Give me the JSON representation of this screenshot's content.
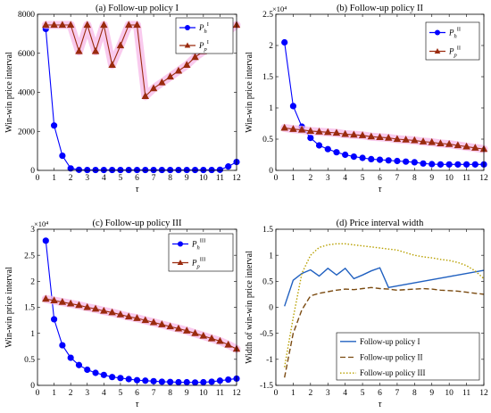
{
  "chart_data": [
    {
      "type": "line",
      "title": "(a) Follow-up policy I",
      "xlabel": "τ",
      "ylabel": "Win-win price interval",
      "xlim": [
        0,
        12
      ],
      "ylim": [
        0,
        8000
      ],
      "xticks": [
        0,
        1,
        2,
        3,
        4,
        5,
        6,
        7,
        8,
        9,
        10,
        11,
        12
      ],
      "yticks": [
        0,
        2000,
        4000,
        6000,
        8000
      ],
      "ytick_labels": [
        "0",
        "2000",
        "4000",
        "6000",
        "8000"
      ],
      "exponent_label": "",
      "grid": false,
      "legend": "top-right",
      "x": [
        0.5,
        1,
        1.5,
        2,
        2.5,
        3,
        3.5,
        4,
        4.5,
        5,
        5.5,
        6,
        6.5,
        7,
        7.5,
        8,
        8.5,
        9,
        9.5,
        10,
        10.5,
        11,
        11.5,
        12
      ],
      "series": [
        {
          "name": "Pₕᴵ",
          "legend_main": "P",
          "legend_sub": "h",
          "legend_sup": "I",
          "color": "#0000ff",
          "marker": "circle",
          "band": false,
          "values": [
            7250,
            2300,
            750,
            100,
            30,
            20,
            20,
            20,
            20,
            20,
            20,
            20,
            20,
            20,
            20,
            20,
            20,
            20,
            20,
            20,
            20,
            30,
            200,
            430
          ]
        },
        {
          "name": "Pₚᴵ",
          "legend_main": "P",
          "legend_sub": "p",
          "legend_sup": "I",
          "color": "#9a2b0e",
          "marker": "triangle",
          "band": true,
          "values": [
            7450,
            7450,
            7450,
            7450,
            6100,
            7450,
            6100,
            7450,
            5400,
            6400,
            7450,
            7450,
            3800,
            4200,
            4500,
            4800,
            5100,
            5400,
            5800,
            6100,
            6500,
            6800,
            7150,
            7450
          ]
        }
      ]
    },
    {
      "type": "line",
      "title": "(b) Follow-up policy II",
      "xlabel": "τ",
      "ylabel": "Win-win price interval",
      "xlim": [
        0,
        12
      ],
      "ylim": [
        0,
        25000
      ],
      "xticks": [
        0,
        1,
        2,
        3,
        4,
        5,
        6,
        7,
        8,
        9,
        10,
        11,
        12
      ],
      "yticks": [
        0,
        5000,
        10000,
        15000,
        20000,
        25000
      ],
      "ytick_labels": [
        "0",
        "0.5",
        "1",
        "1.5",
        "2",
        "2.5"
      ],
      "exponent_label": "×10⁴",
      "grid": false,
      "legend": "top-right",
      "x": [
        0.5,
        1,
        1.5,
        2,
        2.5,
        3,
        3.5,
        4,
        4.5,
        5,
        5.5,
        6,
        6.5,
        7,
        7.5,
        8,
        8.5,
        9,
        9.5,
        10,
        10.5,
        11,
        11.5,
        12
      ],
      "series": [
        {
          "name": "Pₕᴵᴵ",
          "legend_main": "P",
          "legend_sub": "h",
          "legend_sup": "II",
          "color": "#0000ff",
          "marker": "circle",
          "band": false,
          "values": [
            20500,
            10300,
            7000,
            5200,
            4000,
            3400,
            2900,
            2500,
            2200,
            2000,
            1800,
            1700,
            1600,
            1500,
            1400,
            1300,
            1100,
            1000,
            950,
            950,
            950,
            950,
            950,
            950
          ]
        },
        {
          "name": "Pₚᴵᴵ",
          "legend_main": "P",
          "legend_sub": "p",
          "legend_sup": "II",
          "color": "#9a2b0e",
          "marker": "triangle",
          "band": true,
          "values": [
            6800,
            6600,
            6500,
            6300,
            6200,
            6100,
            6000,
            5800,
            5700,
            5600,
            5400,
            5300,
            5200,
            5000,
            4900,
            4800,
            4600,
            4500,
            4300,
            4200,
            4000,
            3800,
            3600,
            3400
          ]
        }
      ]
    },
    {
      "type": "line",
      "title": "(c) Follow-up policy III",
      "xlabel": "τ",
      "ylabel": "Win-win price interval",
      "xlim": [
        0,
        12
      ],
      "ylim": [
        0,
        30000
      ],
      "xticks": [
        0,
        1,
        2,
        3,
        4,
        5,
        6,
        7,
        8,
        9,
        10,
        11,
        12
      ],
      "yticks": [
        0,
        5000,
        10000,
        15000,
        20000,
        25000,
        30000
      ],
      "ytick_labels": [
        "0",
        "0.5",
        "1",
        "1.5",
        "2",
        "2.5",
        "3"
      ],
      "exponent_label": "×10⁴",
      "grid": false,
      "legend": "top-right",
      "x": [
        0.5,
        1,
        1.5,
        2,
        2.5,
        3,
        3.5,
        4,
        4.5,
        5,
        5.5,
        6,
        6.5,
        7,
        7.5,
        8,
        8.5,
        9,
        9.5,
        10,
        10.5,
        11,
        11.5,
        12
      ],
      "series": [
        {
          "name": "Pₕᴵᴵᴵ",
          "legend_main": "P",
          "legend_sub": "h",
          "legend_sup": "III",
          "color": "#0000ff",
          "marker": "circle",
          "band": false,
          "values": [
            27800,
            12700,
            7700,
            5300,
            3900,
            3000,
            2400,
            2000,
            1600,
            1400,
            1200,
            1000,
            900,
            800,
            700,
            650,
            600,
            600,
            550,
            600,
            700,
            900,
            1100,
            1300
          ]
        },
        {
          "name": "Pₚᴵᴵᴵ",
          "legend_main": "P",
          "legend_sub": "p",
          "legend_sup": "III",
          "color": "#9a2b0e",
          "marker": "triangle",
          "band": true,
          "values": [
            16600,
            16300,
            16000,
            15700,
            15400,
            15000,
            14700,
            14300,
            14000,
            13600,
            13200,
            12900,
            12500,
            12100,
            11700,
            11300,
            10900,
            10500,
            10000,
            9500,
            9000,
            8500,
            7800,
            7000
          ]
        }
      ]
    },
    {
      "type": "line",
      "title": "(d) Price interval width",
      "xlabel": "τ",
      "ylabel": "Width of win-win price interval",
      "xlim": [
        0,
        12
      ],
      "ylim": [
        -1.5,
        1.5
      ],
      "xticks": [
        0,
        1,
        2,
        3,
        4,
        5,
        6,
        7,
        8,
        9,
        10,
        11,
        12
      ],
      "yticks": [
        -1.5,
        -1,
        -0.5,
        0,
        0.5,
        1,
        1.5
      ],
      "ytick_labels": [
        "-1.5",
        "-1",
        "-0.5",
        "0",
        "0.5",
        "1",
        "1.5"
      ],
      "exponent_label": "",
      "grid": false,
      "legend": "bottom-right",
      "x": [
        0.5,
        1,
        1.5,
        2,
        2.5,
        3,
        3.5,
        4,
        4.5,
        5,
        5.5,
        6,
        6.5,
        7,
        7.5,
        8,
        8.5,
        9,
        9.5,
        10,
        10.5,
        11,
        11.5,
        12
      ],
      "series": [
        {
          "name": "Follow-up policy I",
          "color": "#2060c0",
          "dash": "solid",
          "values": [
            0.02,
            0.52,
            0.65,
            0.72,
            0.6,
            0.75,
            0.62,
            0.75,
            0.55,
            0.62,
            0.7,
            0.76,
            0.38,
            0.41,
            0.44,
            0.47,
            0.5,
            0.53,
            0.56,
            0.59,
            0.62,
            0.65,
            0.68,
            0.71
          ]
        },
        {
          "name": "Follow-up policy II",
          "color": "#7a4a10",
          "dash": "dashed",
          "values": [
            -1.35,
            -0.5,
            -0.05,
            0.22,
            0.27,
            0.3,
            0.33,
            0.35,
            0.34,
            0.36,
            0.38,
            0.36,
            0.35,
            0.33,
            0.34,
            0.35,
            0.36,
            0.35,
            0.33,
            0.32,
            0.31,
            0.29,
            0.27,
            0.25
          ]
        },
        {
          "name": "Follow-up policy III",
          "color": "#b8a000",
          "dash": "dotted",
          "values": [
            -1.15,
            -0.2,
            0.65,
            1.0,
            1.15,
            1.2,
            1.22,
            1.22,
            1.2,
            1.18,
            1.16,
            1.14,
            1.12,
            1.1,
            1.05,
            1.0,
            0.97,
            0.95,
            0.92,
            0.9,
            0.86,
            0.8,
            0.7,
            0.55
          ]
        }
      ]
    }
  ]
}
